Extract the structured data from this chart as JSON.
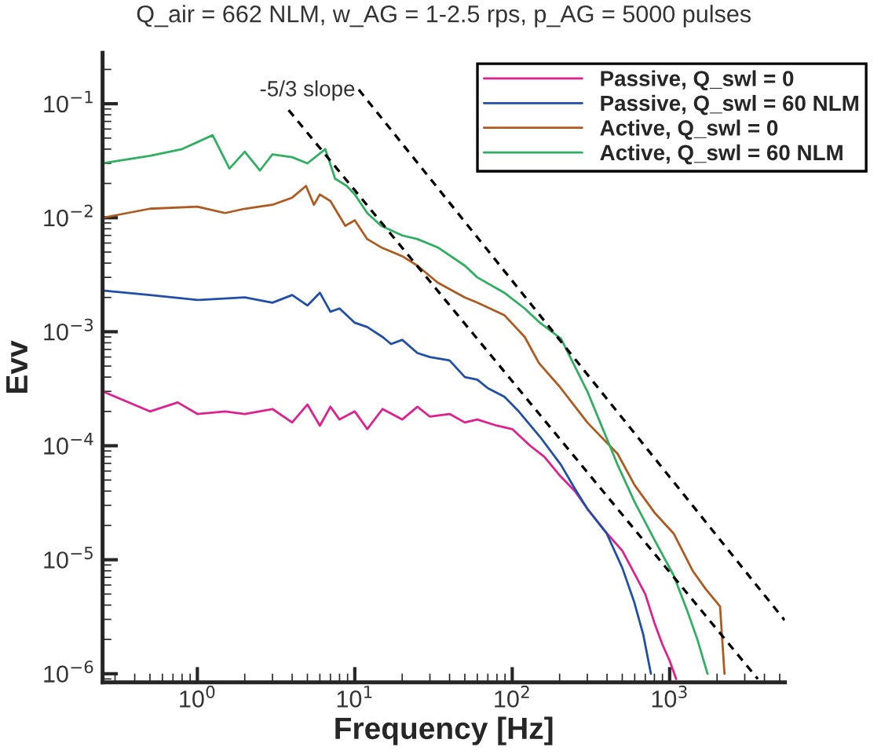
{
  "chart_data": {
    "type": "line",
    "title": "Q_air = 662 NLM, w_AG = 1-2.5 rps, p_AG = 5000 pulses",
    "xlabel": "Frequency [Hz]",
    "ylabel": "Evv",
    "log": "xy",
    "grid": false,
    "legend": "top right",
    "line_style": "solid",
    "marker": "none",
    "xlim": [
      0.25,
      5400
    ],
    "ylim": [
      8.4e-07,
      0.28
    ],
    "xticks": [
      {
        "value": 1,
        "label": "10$^{0}$"
      },
      {
        "value": 10,
        "label": "10$^{1}$"
      },
      {
        "value": 100,
        "label": "10$^{2}$"
      },
      {
        "value": 1000,
        "label": "10$^{3}$"
      }
    ],
    "yticks": [
      {
        "value": 1e-06,
        "label": "10$^{−6}$"
      },
      {
        "value": 1e-05,
        "label": "10$^{−5}$"
      },
      {
        "value": 0.0001,
        "label": "10$^{−4}$"
      },
      {
        "value": 0.001,
        "label": "10$^{−3}$"
      },
      {
        "value": 0.01,
        "label": "10$^{−2}$"
      },
      {
        "value": 0.1,
        "label": "10$^{−1}$"
      }
    ],
    "annotations": [
      "-5/3 slope"
    ],
    "series": [
      {
        "name": "Passive, Q_swl = 0",
        "color": "#e0208f",
        "x": [
          0.25,
          0.5,
          0.75,
          1.0,
          1.5,
          2,
          3,
          4,
          5,
          6,
          7,
          8,
          10,
          12,
          15,
          20,
          25,
          30,
          40,
          50,
          60,
          80,
          100,
          130,
          160,
          200,
          250,
          300,
          400,
          500,
          600,
          700,
          800,
          900,
          1000,
          1100
        ],
        "values": [
          0.0003,
          0.0002,
          0.00024,
          0.00019,
          0.0002,
          0.00019,
          0.00021,
          0.00016,
          0.00023,
          0.00015,
          0.00022,
          0.00017,
          0.0002,
          0.00014,
          0.00021,
          0.00017,
          0.00022,
          0.00018,
          0.00019,
          0.00016,
          0.00017,
          0.00015,
          0.00014,
          0.0001,
          8e-05,
          5.5e-05,
          4e-05,
          2.8e-05,
          1.7e-05,
          1.2e-05,
          7.5e-06,
          5e-06,
          2.8e-06,
          1.8e-06,
          1.3e-06,
          9e-07
        ]
      },
      {
        "name": "Passive, Q_swl = 60 NLM",
        "color": "#1f4fa8",
        "x": [
          0.25,
          0.5,
          1.0,
          2,
          3,
          4,
          5,
          6,
          7,
          8,
          10,
          12,
          15,
          17,
          20,
          25,
          30,
          40,
          50,
          60,
          70,
          89,
          110,
          150,
          204,
          250,
          300,
          398,
          500,
          594,
          680,
          760
        ],
        "values": [
          0.0023,
          0.0021,
          0.0019,
          0.002,
          0.0018,
          0.0021,
          0.0017,
          0.0022,
          0.0015,
          0.0016,
          0.0012,
          0.0011,
          0.0009,
          0.00078,
          0.00085,
          0.00065,
          0.0006,
          0.00056,
          0.0004,
          0.00038,
          0.00032,
          0.00027,
          0.0002,
          0.00012,
          6.8e-05,
          4.2e-05,
          2.8e-05,
          1.7e-05,
          8.5e-06,
          4.3e-06,
          2.2e-06,
          1e-06
        ]
      },
      {
        "name": "Active, Q_swl = 0",
        "color": "#b05a20",
        "x": [
          0.25,
          0.5,
          1.0,
          1.5,
          2,
          3,
          4,
          4.9,
          5.5,
          6,
          7,
          8.7,
          10,
          12,
          14.7,
          20,
          25,
          33.6,
          50,
          60,
          89,
          120,
          148,
          200,
          300,
          467,
          600,
          800,
          1060,
          1400,
          1700,
          2090,
          2230
        ],
        "values": [
          0.01,
          0.012,
          0.0125,
          0.011,
          0.012,
          0.013,
          0.015,
          0.019,
          0.013,
          0.016,
          0.014,
          0.0085,
          0.0095,
          0.0065,
          0.0055,
          0.0046,
          0.0038,
          0.0027,
          0.002,
          0.0018,
          0.0014,
          0.0009,
          0.00053,
          0.00033,
          0.00016,
          8.5e-05,
          4.5e-05,
          2.6e-05,
          1.7e-05,
          8e-06,
          5.5e-06,
          3.9e-06,
          1e-06
        ]
      },
      {
        "name": "Active, Q_swl = 60 NLM",
        "color": "#2fb060",
        "x": [
          0.25,
          0.5,
          0.8,
          1.25,
          1.6,
          2,
          2.5,
          3,
          4,
          5,
          6.5,
          7.5,
          8.9,
          10,
          12,
          14.7,
          20,
          25,
          33.6,
          50,
          60,
          89,
          120,
          150,
          204,
          300,
          467,
          600,
          800,
          1060,
          1300,
          1500,
          1740
        ],
        "values": [
          0.03,
          0.035,
          0.04,
          0.053,
          0.027,
          0.038,
          0.026,
          0.036,
          0.034,
          0.03,
          0.04,
          0.022,
          0.019,
          0.016,
          0.011,
          0.0085,
          0.007,
          0.0065,
          0.0055,
          0.0038,
          0.003,
          0.0022,
          0.0016,
          0.0012,
          0.00087,
          0.0003,
          6.8e-05,
          3.2e-05,
          1.5e-05,
          7.3e-06,
          3.5e-06,
          2e-06,
          1e-06
        ]
      },
      {
        "color": "#000000",
        "line_style": "dashed",
        "x": [
          10.6,
          5370
        ],
        "values": [
          0.133,
          2.95e-06
        ]
      },
      {
        "color": "#000000",
        "line_style": "dashed",
        "x": [
          3.8,
          3630
        ],
        "values": [
          0.088,
          9e-07
        ]
      }
    ]
  }
}
